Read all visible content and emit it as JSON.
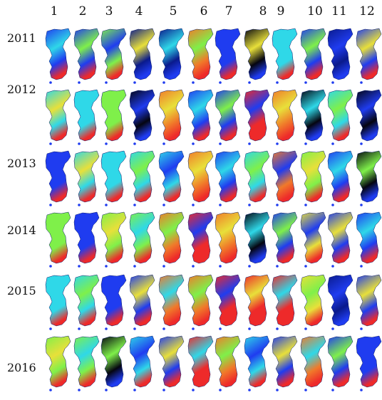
{
  "months": [
    "1",
    "2",
    "3",
    "4",
    "5",
    "6",
    "7",
    "8",
    "9",
    "10",
    "11",
    "12"
  ],
  "years": [
    "2011",
    "2012",
    "2013",
    "2014",
    "2015",
    "2016"
  ],
  "colors": {
    "black": "#050510",
    "dark_blue": "#0a1a8c",
    "blue": "#1f3cf0",
    "cyan": "#2fd8e8",
    "green": "#7ff04a",
    "yellow": "#e8e03a",
    "orange": "#f07a2a",
    "red": "#ee2a2a"
  },
  "grid": [
    [
      "blue",
      "blue",
      "green",
      "dark_blue",
      "dark_blue",
      "orange",
      "blue",
      "black",
      "cyan",
      "blue",
      "dark_blue",
      "blue"
    ],
    [
      "cyan",
      "cyan",
      "green",
      "black",
      "orange",
      "blue",
      "blue",
      "red",
      "orange",
      "black",
      "cyan",
      "black"
    ],
    [
      "blue",
      "cyan",
      "cyan",
      "cyan",
      "cyan",
      "orange",
      "blue",
      "cyan",
      "orange",
      "green",
      "blue",
      "black"
    ],
    [
      "green",
      "blue",
      "green",
      "green",
      "orange",
      "red",
      "orange",
      "black",
      "blue",
      "yellow",
      "blue",
      "blue"
    ],
    [
      "cyan",
      "cyan",
      "blue",
      "blue",
      "orange",
      "orange",
      "red",
      "red",
      "red",
      "yellow",
      "dark_blue",
      "blue"
    ],
    [
      "green",
      "green",
      "black",
      "cyan",
      "blue",
      "red",
      "orange",
      "cyan",
      "blue",
      "orange",
      "blue",
      "blue"
    ]
  ]
}
